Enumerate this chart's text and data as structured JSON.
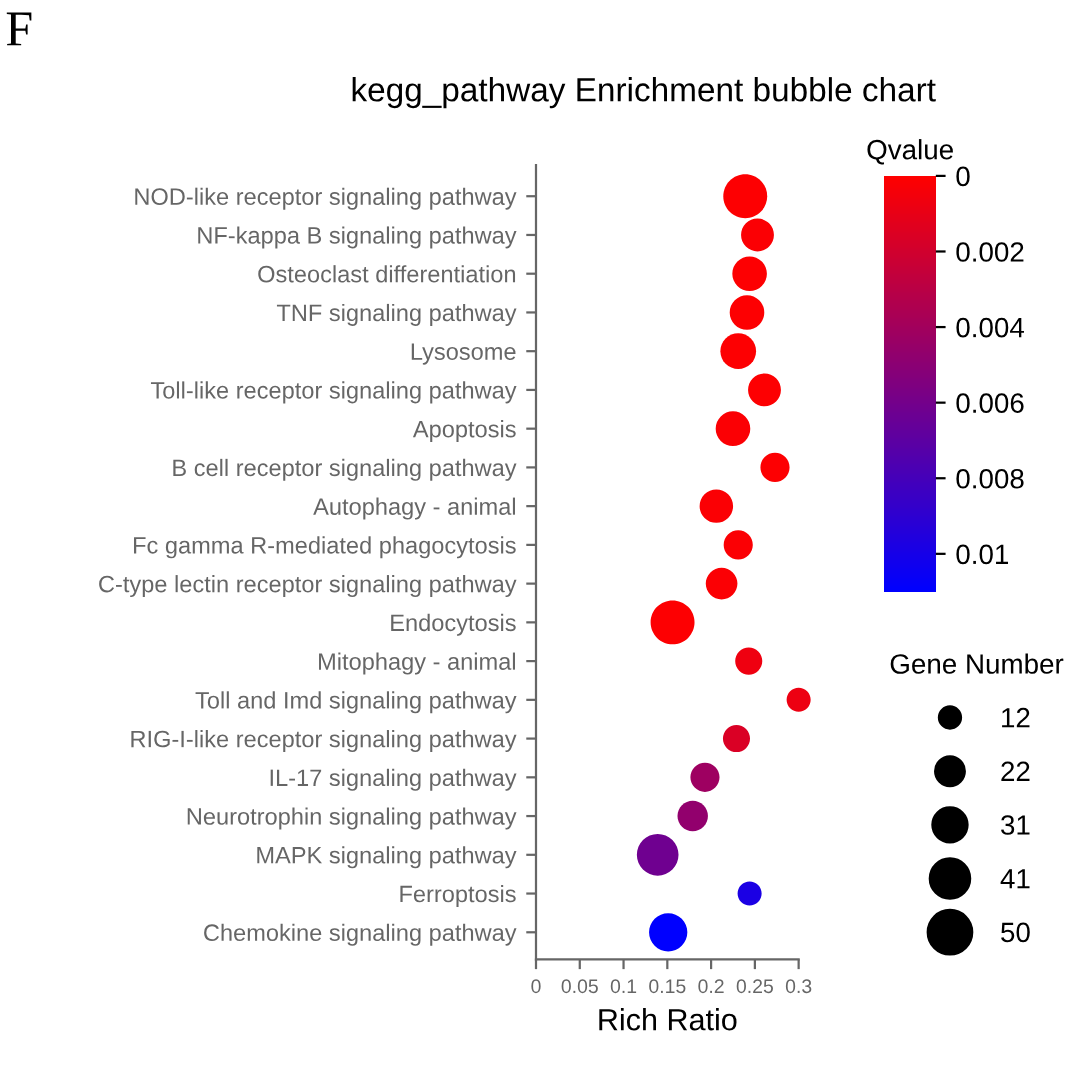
{
  "chart_data": {
    "type": "bubble",
    "title": "kegg_pathway Enrichment bubble chart",
    "xlabel": "Rich Ratio",
    "clabel": "Qvalue",
    "legend_title": "Gene Number",
    "orientation": "horizontal",
    "annotations": [
      "F"
    ],
    "categories": [
      "NOD-like receptor signaling pathway",
      "NF-kappa B signaling pathway",
      "Osteoclast differentiation",
      "TNF signaling pathway",
      "Lysosome",
      "Toll-like receptor signaling pathway",
      "Apoptosis",
      "B cell receptor signaling pathway",
      "Autophagy - animal",
      "Fc gamma R-mediated phagocytosis",
      "C-type lectin receptor signaling pathway",
      "Endocytosis",
      "Mitophagy - animal",
      "Toll and Imd signaling pathway",
      "RIG-I-like receptor signaling pathway",
      "IL-17 signaling pathway",
      "Neurotrophin signaling pathway",
      "MAPK signaling pathway",
      "Ferroptosis",
      "Chemokine signaling pathway"
    ],
    "values": [
      0.239,
      0.253,
      0.244,
      0.241,
      0.231,
      0.261,
      0.225,
      0.273,
      0.206,
      0.231,
      0.212,
      0.156,
      0.243,
      0.3,
      0.229,
      0.193,
      0.179,
      0.139,
      0.244,
      0.151
    ],
    "sizes": [
      50,
      28,
      31,
      31,
      33,
      28,
      31,
      22,
      29,
      22,
      26,
      50,
      19,
      15,
      19,
      22,
      24,
      45,
      15,
      38
    ],
    "cvalues": [
      0.0001,
      0.0002,
      0.0001,
      0.0001,
      0.0001,
      0.0001,
      0.0002,
      0.0001,
      0.0002,
      0.0002,
      0.0002,
      0.0001,
      0.0007,
      0.0008,
      0.0016,
      0.0042,
      0.0047,
      0.0062,
      0.0098,
      0.011
    ],
    "size_legend": [
      12,
      22,
      31,
      41,
      50
    ],
    "xlim": [
      0,
      0.3
    ],
    "xticks": [
      0,
      0.05,
      0.1,
      0.15,
      0.2,
      0.25,
      0.3
    ],
    "clim": [
      0,
      0.011
    ],
    "cticks": [
      0,
      0.002,
      0.004,
      0.006,
      0.008,
      0.01
    ],
    "grid": false
  }
}
